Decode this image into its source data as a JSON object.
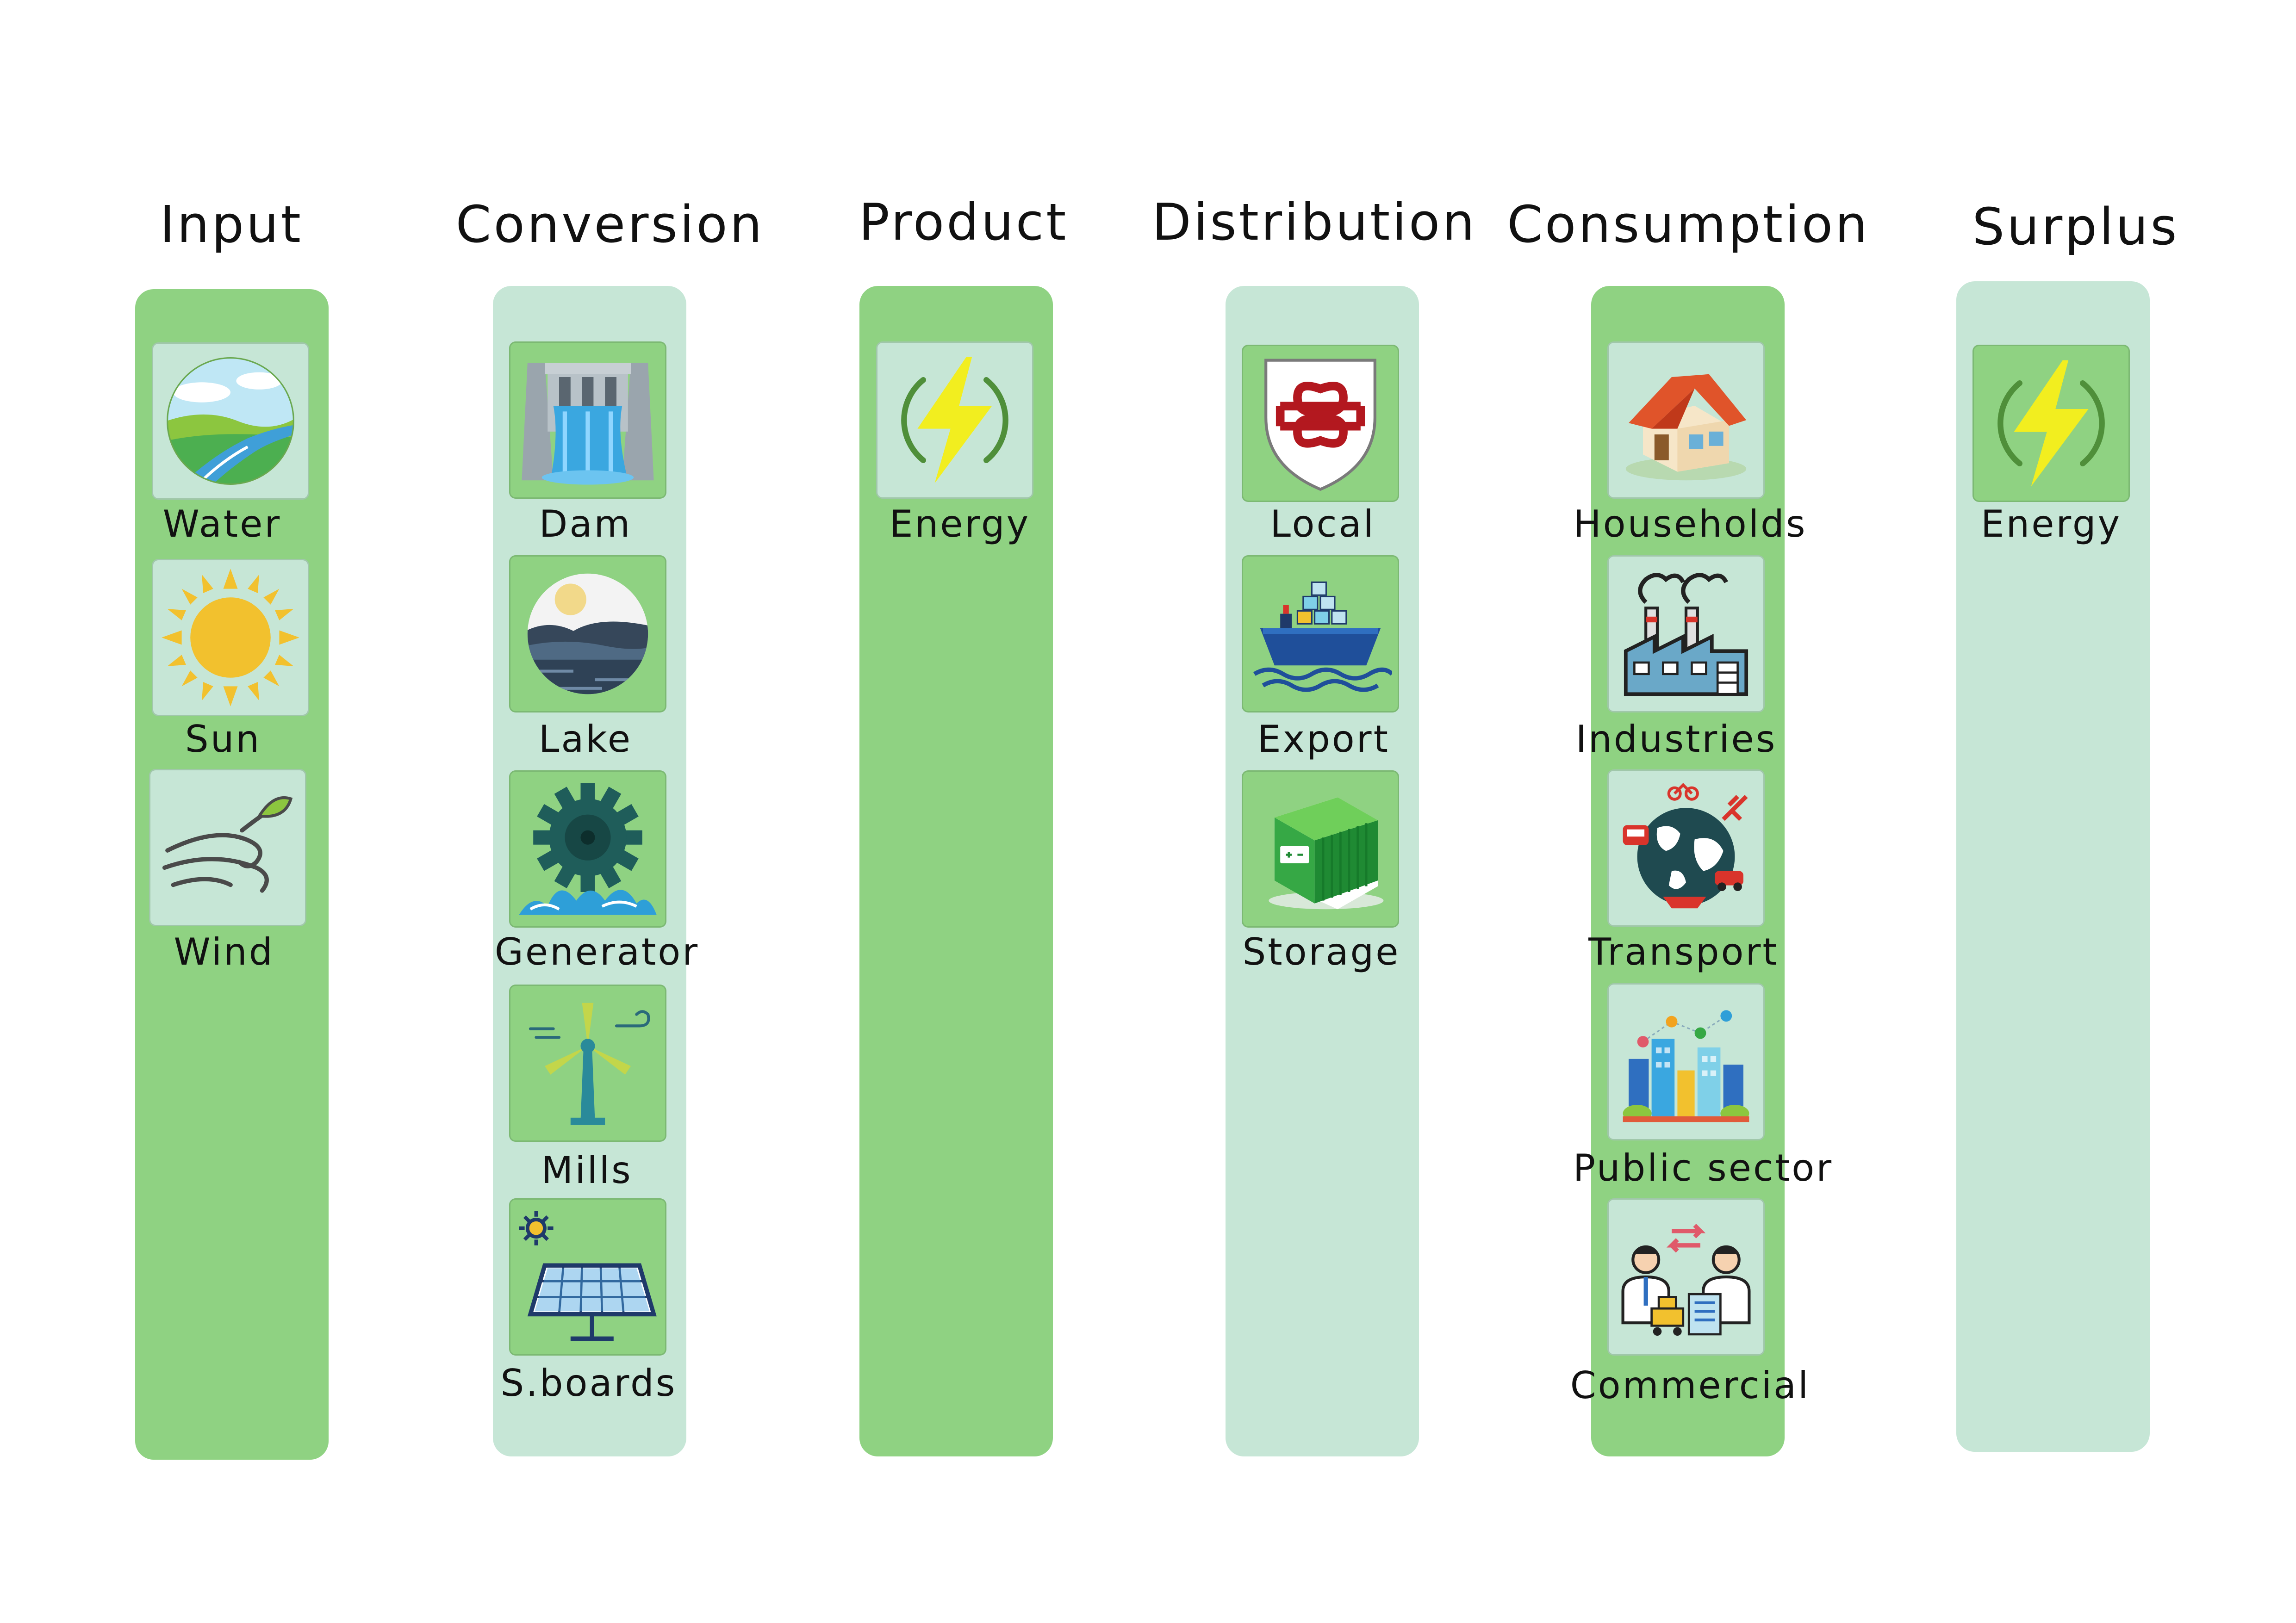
{
  "columns": [
    {
      "title": "Input",
      "items": [
        {
          "label": "Water",
          "icon": "river-landscape-icon"
        },
        {
          "label": "Sun",
          "icon": "sun-icon"
        },
        {
          "label": "Wind",
          "icon": "wind-icon"
        }
      ]
    },
    {
      "title": "Conversion",
      "items": [
        {
          "label": "Dam",
          "icon": "dam-icon"
        },
        {
          "label": "Lake",
          "icon": "lake-icon"
        },
        {
          "label": "Generator",
          "icon": "water-turbine-icon"
        },
        {
          "label": "Mills",
          "icon": "wind-turbine-icon"
        },
        {
          "label": "S.boards",
          "icon": "solar-panel-icon"
        }
      ]
    },
    {
      "title": "Product",
      "items": [
        {
          "label": "Energy",
          "icon": "energy-bolt-icon"
        }
      ]
    },
    {
      "title": "Distribution",
      "items": [
        {
          "label": "Local",
          "icon": "coat-of-arms-icon"
        },
        {
          "label": "Export",
          "icon": "cargo-ship-icon"
        },
        {
          "label": "Storage",
          "icon": "battery-storage-icon"
        }
      ]
    },
    {
      "title": "Consumption",
      "items": [
        {
          "label": "Households",
          "icon": "house-icon"
        },
        {
          "label": "Industries",
          "icon": "factory-icon"
        },
        {
          "label": "Transport",
          "icon": "globe-transport-icon"
        },
        {
          "label": "Public sector",
          "icon": "city-icon"
        },
        {
          "label": "Commercial",
          "icon": "business-people-icon"
        }
      ]
    },
    {
      "title": "Surplus",
      "items": [
        {
          "label": "Energy",
          "icon": "energy-bolt-icon"
        }
      ]
    }
  ],
  "colors": {
    "column_dark": "#8fd282",
    "column_light": "#c6e6d6",
    "bolt": "#f2ee1f",
    "bolt_ring": "#4f8f3a"
  }
}
